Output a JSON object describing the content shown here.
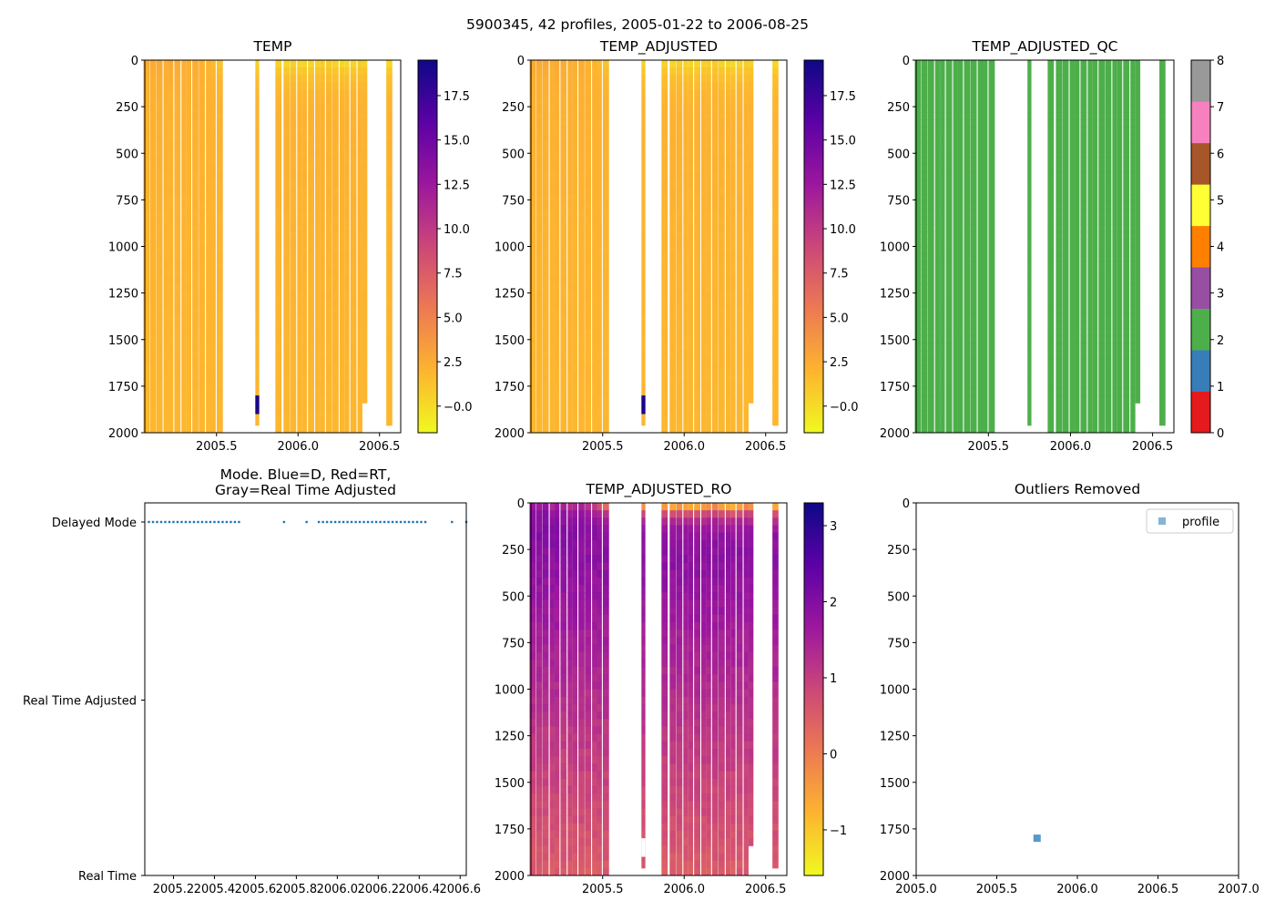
{
  "figure": {
    "suptitle": "5900345, 42 profiles, 2005-01-22 to 2006-08-25"
  },
  "colors": {
    "plasma_r": [
      "#f0f921",
      "#fdb42f",
      "#ed7953",
      "#cc4778",
      "#9c179e",
      "#5c01a6",
      "#0d0887"
    ],
    "qc": [
      "#e41a1c",
      "#377eb8",
      "#4daf4a",
      "#984ea3",
      "#ff7f00",
      "#ffff33",
      "#a65628",
      "#f781bf",
      "#999999"
    ],
    "point": "#1f77b4"
  },
  "chart_data": [
    {
      "id": "temp",
      "type": "heatmap",
      "title": "TEMP",
      "xlim": [
        2005.06,
        2006.63
      ],
      "ylim": [
        2000,
        0
      ],
      "xticks": [
        "2005.5",
        "2006.0",
        "2006.5"
      ],
      "yticks": [
        "0",
        "250",
        "500",
        "750",
        "1000",
        "1250",
        "1500",
        "1750",
        "2000"
      ],
      "colorbar": {
        "range": [
          -1.5,
          19.5
        ],
        "ticks": [
          "−0.0",
          "2.5",
          "5.0",
          "7.5",
          "10.0",
          "12.5",
          "15.0",
          "17.5"
        ]
      },
      "profile_times": [
        2005.07,
        2005.11,
        2005.15,
        2005.19,
        2005.22,
        2005.26,
        2005.3,
        2005.33,
        2005.37,
        2005.41,
        2005.45,
        2005.48,
        2005.52,
        2005.75,
        2005.88,
        2005.93,
        2005.97,
        2006.01,
        2006.04,
        2006.08,
        2006.12,
        2006.15,
        2006.19,
        2006.23,
        2006.27,
        2006.3,
        2006.34,
        2006.38,
        2006.41,
        2006.56
      ],
      "surface_temp": [
        2.6,
        2.5,
        2.7,
        2.3,
        2.6,
        2.4,
        2.2,
        2.3,
        2.4,
        2.1,
        2.0,
        1.6,
        1.2,
        0.6,
        0.5,
        0.3,
        0.6,
        0.4,
        0.3,
        0.3,
        0.5,
        0.6,
        0.8,
        0.4,
        0.3,
        0.2,
        0.4,
        0.8,
        0.6,
        0.3
      ],
      "deep_temp": 2.2,
      "outlier": {
        "time": 2005.75,
        "depth_range": [
          1800,
          1900
        ],
        "value": 19.0
      }
    },
    {
      "id": "temp_adj",
      "type": "heatmap",
      "title": "TEMP_ADJUSTED",
      "xlim": [
        2005.06,
        2006.63
      ],
      "ylim": [
        2000,
        0
      ],
      "xticks": [
        "2005.5",
        "2006.0",
        "2006.5"
      ],
      "yticks": [
        "0",
        "250",
        "500",
        "750",
        "1000",
        "1250",
        "1500",
        "1750",
        "2000"
      ],
      "colorbar": {
        "range": [
          -1.5,
          19.5
        ],
        "ticks": [
          "−0.0",
          "2.5",
          "5.0",
          "7.5",
          "10.0",
          "12.5",
          "15.0",
          "17.5"
        ]
      }
    },
    {
      "id": "qc",
      "type": "heatmap",
      "title": "TEMP_ADJUSTED_QC",
      "xlim": [
        2005.06,
        2006.63
      ],
      "ylim": [
        2000,
        0
      ],
      "xticks": [
        "2005.5",
        "2006.0",
        "2006.5"
      ],
      "yticks": [
        "0",
        "250",
        "500",
        "750",
        "1000",
        "1250",
        "1500",
        "1750",
        "2000"
      ],
      "value": 2,
      "colorbar": {
        "range": [
          0,
          8
        ],
        "ticks": [
          "0",
          "1",
          "2",
          "3",
          "4",
          "5",
          "6",
          "7",
          "8"
        ]
      }
    },
    {
      "id": "mode",
      "type": "scatter",
      "title": "Mode. Blue=D, Red=RT,\nGray=Real Time Adjusted",
      "title_lines": [
        "Mode. Blue=D, Red=RT,",
        "Gray=Real Time Adjusted"
      ],
      "xlim": [
        2005.06,
        2006.63
      ],
      "xticks": [
        "2005.2",
        "2005.4",
        "2005.6",
        "2005.8",
        "2006.0",
        "2006.2",
        "2006.4",
        "2006.6"
      ],
      "ycats": [
        "Delayed Mode",
        "Real Time Adjusted",
        "Real Time"
      ],
      "x": [
        2005.08,
        2005.1,
        2005.12,
        2005.14,
        2005.16,
        2005.18,
        2005.2,
        2005.22,
        2005.24,
        2005.26,
        2005.28,
        2005.3,
        2005.32,
        2005.34,
        2005.36,
        2005.38,
        2005.4,
        2005.42,
        2005.44,
        2005.46,
        2005.48,
        2005.5,
        2005.52,
        2005.74,
        2005.85,
        2005.91,
        2005.93,
        2005.95,
        2005.97,
        2005.99,
        2006.01,
        2006.03,
        2006.05,
        2006.07,
        2006.09,
        2006.11,
        2006.13,
        2006.15,
        2006.17,
        2006.19,
        2006.21,
        2006.23,
        2006.25,
        2006.27,
        2006.29,
        2006.31,
        2006.33,
        2006.35,
        2006.37,
        2006.39,
        2006.41,
        2006.43,
        2006.56,
        2006.63
      ]
    },
    {
      "id": "temp_ro",
      "type": "heatmap",
      "title": "TEMP_ADJUSTED_RO",
      "xlim": [
        2005.06,
        2006.63
      ],
      "ylim": [
        2000,
        0
      ],
      "xticks": [
        "2005.5",
        "2006.0",
        "2006.5"
      ],
      "yticks": [
        "0",
        "250",
        "500",
        "750",
        "1000",
        "1250",
        "1500",
        "1750",
        "2000"
      ],
      "colorbar": {
        "range": [
          -1.6,
          3.3
        ],
        "ticks": [
          "−1",
          "0",
          "1",
          "2",
          "3"
        ]
      }
    },
    {
      "id": "outliers",
      "type": "scatter",
      "title": "Outliers Removed",
      "xlim": [
        2005.0,
        2007.0
      ],
      "ylim": [
        2000,
        0
      ],
      "xticks": [
        "2005.0",
        "2005.5",
        "2006.0",
        "2006.5",
        "2007.0"
      ],
      "yticks": [
        "0",
        "250",
        "500",
        "750",
        "1000",
        "1250",
        "1500",
        "1750",
        "2000"
      ],
      "legend": {
        "label": "profile",
        "position": "top-right"
      },
      "points": [
        {
          "x": 2005.75,
          "y": 1800
        }
      ]
    }
  ]
}
